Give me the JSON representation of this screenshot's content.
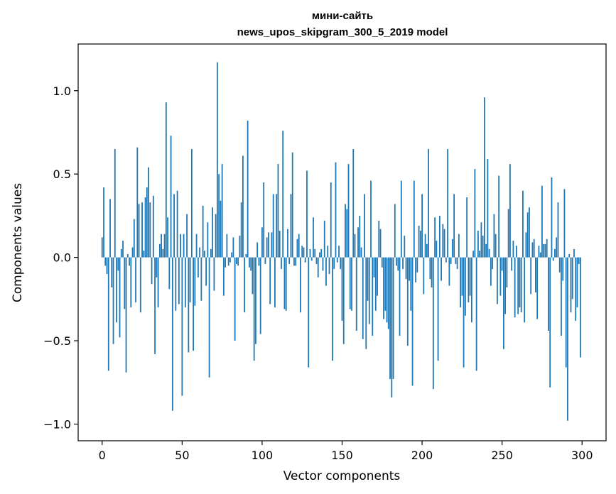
{
  "chart_data": {
    "type": "bar",
    "title_line1": "мини-сайть",
    "title_line2": "news_upos_skipgram_300_5_2019 model",
    "xlabel": "Vector components",
    "ylabel": "Components values",
    "xlim": [
      -15,
      315
    ],
    "ylim": [
      -1.1,
      1.28
    ],
    "xticks": [
      0,
      50,
      100,
      150,
      200,
      250,
      300
    ],
    "xtick_labels": [
      "0",
      "50",
      "100",
      "150",
      "200",
      "250",
      "300"
    ],
    "yticks": [
      -1.0,
      -0.5,
      0.0,
      0.5,
      1.0
    ],
    "ytick_labels": [
      "−1.0",
      "−0.5",
      "0.0",
      "0.5",
      "1.0"
    ],
    "bar_color": "#1f77b4",
    "values": [
      0.12,
      0.42,
      -0.05,
      -0.1,
      -0.68,
      0.35,
      -0.18,
      -0.52,
      0.65,
      -0.39,
      -0.08,
      -0.48,
      0.05,
      0.1,
      -0.31,
      -0.69,
      0.02,
      -0.05,
      -0.3,
      0.06,
      0.23,
      -0.27,
      0.66,
      0.32,
      -0.33,
      0.33,
      0.04,
      0.36,
      0.42,
      0.54,
      0.33,
      -0.16,
      0.37,
      -0.58,
      -0.12,
      -0.3,
      0.08,
      0.14,
      0.05,
      0.14,
      0.93,
      0.24,
      -0.19,
      0.73,
      -0.92,
      0.38,
      -0.32,
      0.4,
      -0.28,
      0.14,
      -0.83,
      0.14,
      -0.3,
      0.26,
      -0.57,
      -0.27,
      0.65,
      -0.56,
      -0.29,
      0.14,
      -0.12,
      0.06,
      -0.26,
      0.31,
      0.04,
      -0.17,
      0.21,
      -0.72,
      0.05,
      0.3,
      -0.2,
      0.26,
      1.17,
      0.5,
      0.34,
      0.56,
      -0.23,
      -0.06,
      0.14,
      -0.05,
      -0.03,
      0.03,
      0.12,
      -0.5,
      -0.04,
      -0.05,
      0.13,
      0.33,
      0.61,
      -0.33,
      0.02,
      0.82,
      -0.06,
      -0.08,
      -0.22,
      -0.62,
      -0.52,
      0.09,
      -0.05,
      -0.46,
      0.18,
      0.45,
      -0.04,
      0.12,
      0.15,
      -0.28,
      0.15,
      0.38,
      -0.3,
      0.38,
      0.56,
      0.16,
      -0.07,
      0.76,
      -0.31,
      -0.32,
      0.17,
      -0.04,
      0.38,
      0.63,
      -0.05,
      -0.05,
      0.11,
      0.14,
      -0.33,
      0.07,
      0.06,
      -0.03,
      0.52,
      -0.66,
      0.05,
      -0.02,
      0.24,
      0.05,
      -0.04,
      -0.12,
      0.03,
      0.05,
      -0.08,
      0.22,
      -0.17,
      0.07,
      -0.1,
      0.45,
      -0.62,
      -0.07,
      0.57,
      -0.03,
      0.07,
      -0.07,
      -0.38,
      -0.52,
      0.32,
      0.29,
      0.56,
      -0.31,
      -0.32,
      0.65,
      0.14,
      -0.44,
      0.18,
      0.25,
      0.06,
      -0.49,
      0.38,
      -0.55,
      -0.26,
      -0.4,
      0.46,
      -0.47,
      -0.12,
      -0.32,
      -0.23,
      0.22,
      0.17,
      -0.06,
      -0.37,
      -0.32,
      -0.39,
      -0.43,
      -0.73,
      -0.84,
      -0.73,
      0.32,
      -0.05,
      -0.08,
      -0.47,
      0.46,
      -0.07,
      0.13,
      -0.13,
      -0.53,
      -0.14,
      -0.32,
      -0.77,
      0.46,
      -0.15,
      -0.09,
      0.19,
      0.16,
      0.38,
      -0.22,
      0.14,
      0.08,
      0.65,
      -0.13,
      -0.18,
      -0.79,
      0.24,
      0.1,
      -0.62,
      0.25,
      -0.14,
      0.2,
      0.17,
      -0.03,
      0.65,
      -0.17,
      -0.04,
      0.11,
      0.38,
      -0.04,
      -0.07,
      0.14,
      -0.3,
      -0.23,
      -0.66,
      -0.35,
      0.36,
      -0.27,
      -0.23,
      -0.39,
      0.04,
      0.53,
      -0.68,
      0.16,
      0.04,
      0.21,
      0.13,
      0.96,
      0.08,
      0.59,
      0.05,
      -0.17,
      -0.07,
      0.26,
      0.14,
      -0.28,
      0.49,
      -0.23,
      -0.08,
      -0.55,
      -0.34,
      -0.18,
      0.29,
      0.56,
      -0.08,
      0.1,
      -0.36,
      0.07,
      -0.34,
      -0.3,
      -0.33,
      0.4,
      -0.39,
      0.15,
      0.27,
      0.3,
      -0.22,
      0.09,
      0.11,
      -0.21,
      -0.37,
      0.07,
      0.03,
      0.43,
      0.08,
      0.08,
      0.11,
      -0.44,
      -0.78,
      0.48,
      -0.02,
      0.05,
      0.12,
      0.33,
      -0.09,
      -0.47,
      -0.14,
      0.41,
      -0.66,
      -0.98,
      0.02,
      -0.33,
      -0.25,
      0.05,
      -0.38,
      -0.3,
      -0.04,
      -0.6
    ]
  }
}
